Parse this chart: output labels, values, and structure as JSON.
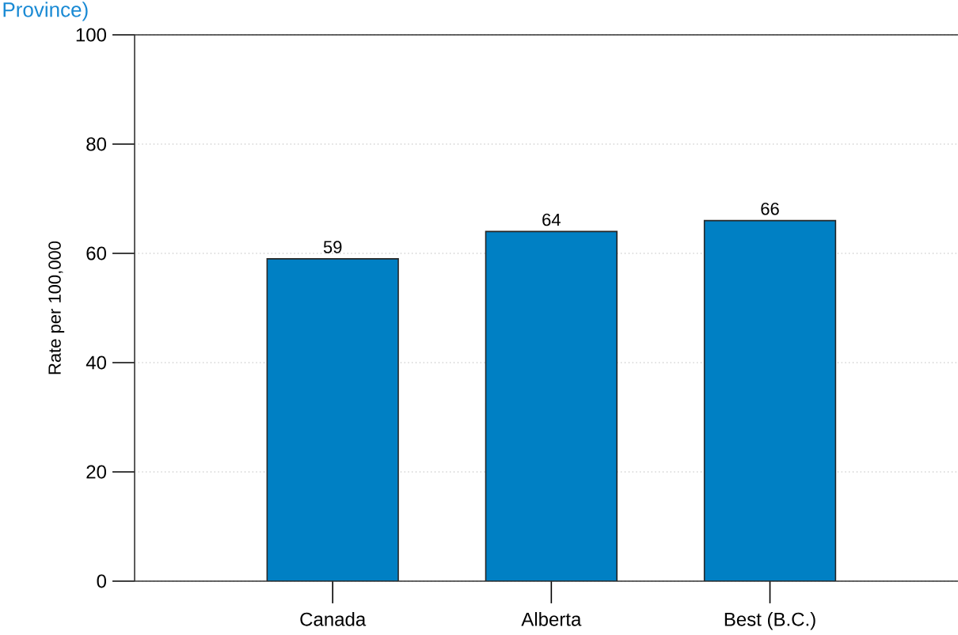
{
  "chart_data": {
    "type": "bar",
    "title": "Province)",
    "ylabel": "Rate per 100,000",
    "categories": [
      "Canada",
      "Alberta",
      "Best (B.C.)"
    ],
    "values": [
      59,
      64,
      66
    ],
    "color": "#0080c4",
    "ylim": [
      0,
      100
    ],
    "yticks": [
      0,
      20,
      40,
      60,
      80,
      100
    ],
    "grid": "y",
    "data_labels": true
  }
}
